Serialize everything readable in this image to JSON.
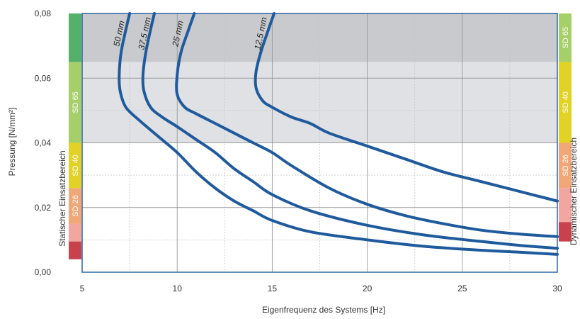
{
  "chart_data": {
    "type": "line",
    "xlabel": "Eigenfrequenz des Systems [Hz]",
    "ylabel": "Pressung [N/mm²]",
    "xlim": [
      5,
      30
    ],
    "ylim": [
      0,
      0.08
    ],
    "x_ticks": [
      "5",
      "10",
      "15",
      "20",
      "25",
      "30"
    ],
    "y_ticks": [
      "0,00",
      "0,02",
      "0,04",
      "0,06",
      "0,08"
    ],
    "grid": true,
    "background_bands": [
      {
        "from": 0.065,
        "to": 0.08,
        "color": "#c8cacd"
      },
      {
        "from": 0.04,
        "to": 0.065,
        "color": "#dfe1e5"
      }
    ],
    "line_color": "#1f5a9c",
    "series": [
      {
        "name": "50 mm",
        "points": [
          [
            7.5,
            0.08
          ],
          [
            7.3,
            0.075
          ],
          [
            7.05,
            0.068
          ],
          [
            6.95,
            0.061
          ],
          [
            7.0,
            0.056
          ],
          [
            7.3,
            0.051
          ],
          [
            8,
            0.047
          ],
          [
            9,
            0.042
          ],
          [
            10,
            0.037
          ],
          [
            11,
            0.031
          ],
          [
            12,
            0.026
          ],
          [
            13,
            0.022
          ],
          [
            14,
            0.019
          ],
          [
            15,
            0.016
          ],
          [
            17,
            0.0125
          ],
          [
            20,
            0.01
          ],
          [
            23,
            0.008
          ],
          [
            26,
            0.0068
          ],
          [
            28,
            0.0062
          ],
          [
            30,
            0.0055
          ]
        ]
      },
      {
        "name": "37,5 mm",
        "points": [
          [
            8.8,
            0.08
          ],
          [
            8.6,
            0.075
          ],
          [
            8.35,
            0.068
          ],
          [
            8.2,
            0.061
          ],
          [
            8.25,
            0.056
          ],
          [
            8.6,
            0.051
          ],
          [
            9.2,
            0.048
          ],
          [
            10,
            0.045
          ],
          [
            11,
            0.041
          ],
          [
            12,
            0.037
          ],
          [
            13,
            0.032
          ],
          [
            14,
            0.028
          ],
          [
            15,
            0.024
          ],
          [
            17,
            0.019
          ],
          [
            20,
            0.0145
          ],
          [
            23,
            0.0115
          ],
          [
            26,
            0.0095
          ],
          [
            28,
            0.0083
          ],
          [
            30,
            0.0074
          ]
        ]
      },
      {
        "name": "25 mm",
        "points": [
          [
            10.9,
            0.08
          ],
          [
            10.6,
            0.075
          ],
          [
            10.2,
            0.068
          ],
          [
            10.0,
            0.061
          ],
          [
            10.0,
            0.055
          ],
          [
            10.4,
            0.051
          ],
          [
            11,
            0.049
          ],
          [
            12,
            0.046
          ],
          [
            13,
            0.043
          ],
          [
            14,
            0.04
          ],
          [
            15,
            0.037
          ],
          [
            16,
            0.033
          ],
          [
            18,
            0.026
          ],
          [
            20,
            0.021
          ],
          [
            22,
            0.0175
          ],
          [
            24,
            0.015
          ],
          [
            26,
            0.013
          ],
          [
            28,
            0.0118
          ],
          [
            30,
            0.011
          ]
        ]
      },
      {
        "name": "12,5 mm",
        "points": [
          [
            15.1,
            0.08
          ],
          [
            14.8,
            0.075
          ],
          [
            14.4,
            0.068
          ],
          [
            14.15,
            0.062
          ],
          [
            14.15,
            0.057
          ],
          [
            14.5,
            0.053
          ],
          [
            15,
            0.051
          ],
          [
            16,
            0.048
          ],
          [
            17,
            0.046
          ],
          [
            18,
            0.043
          ],
          [
            20,
            0.039
          ],
          [
            22,
            0.035
          ],
          [
            24,
            0.031
          ],
          [
            26,
            0.028
          ],
          [
            28,
            0.025
          ],
          [
            30,
            0.022
          ]
        ]
      }
    ],
    "left_scale_title": "Statischer Einsatzbereich",
    "right_scale_title": "Dynamischer Einsatzbereich",
    "left_scale": [
      {
        "from": 0.065,
        "to": 0.08,
        "color": "#55b06a",
        "label": ""
      },
      {
        "from": 0.04,
        "to": 0.065,
        "color": "#a6cf6a",
        "label": "SD 65"
      },
      {
        "from": 0.026,
        "to": 0.04,
        "color": "#e2d226",
        "label": "SD 40"
      },
      {
        "from": 0.015,
        "to": 0.026,
        "color": "#f0a878",
        "label": "SD 26"
      },
      {
        "from": 0.0095,
        "to": 0.015,
        "color": "#f1a6a0",
        "label": ""
      },
      {
        "from": 0.004,
        "to": 0.0095,
        "color": "#c8424e",
        "label": ""
      }
    ],
    "right_scale": [
      {
        "from": 0.065,
        "to": 0.08,
        "color": "#a6cf6a",
        "label": "SD 65"
      },
      {
        "from": 0.04,
        "to": 0.065,
        "color": "#e2d226",
        "label": "SD 40"
      },
      {
        "from": 0.026,
        "to": 0.04,
        "color": "#f0a878",
        "label": "SD 26"
      },
      {
        "from": 0.0155,
        "to": 0.026,
        "color": "#f1a6a0",
        "label": ""
      },
      {
        "from": 0.0095,
        "to": 0.0155,
        "color": "#c8424e",
        "label": ""
      }
    ]
  }
}
